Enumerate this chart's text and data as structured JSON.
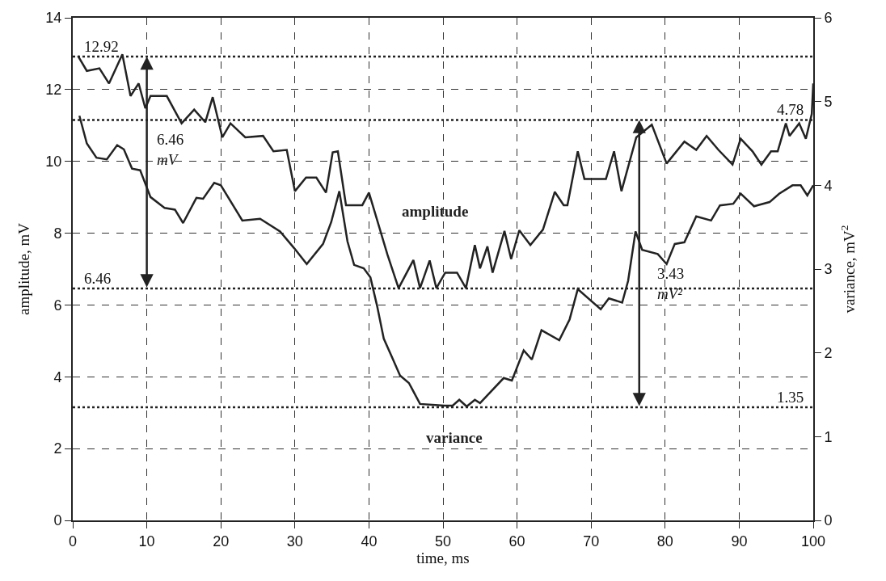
{
  "chart_data": {
    "type": "line",
    "xlabel": "time, ms",
    "ylabel": "amplitude, mV",
    "y2label": "variance, mV$^{2}$",
    "xlim": [
      0,
      100
    ],
    "xticks": [
      0,
      10,
      20,
      30,
      40,
      50,
      60,
      70,
      80,
      90,
      100
    ],
    "ylim": [
      0,
      14
    ],
    "yticks": [
      0,
      2,
      4,
      6,
      8,
      10,
      12,
      14
    ],
    "y2lim": [
      0,
      6
    ],
    "y2ticks": [
      0,
      1,
      2,
      3,
      4,
      5,
      6
    ],
    "grid": true,
    "legend": false,
    "line_style": "solid",
    "series": [
      {
        "name": "amplitude",
        "color": "#222222",
        "x": [
          0.7,
          1.9,
          3.6,
          4.9,
          6.7,
          7.8,
          8.9,
          9.8,
          10.5,
          12.7,
          14.7,
          16.4,
          17.9,
          18.9,
          20.2,
          21.3,
          23.3,
          25.7,
          27.1,
          28.9,
          30.0,
          31.5,
          32.9,
          34.2,
          35.1,
          35.8,
          36.9,
          39.1,
          40.0,
          42.5,
          44.0,
          46.0,
          46.9,
          48.2,
          49.1,
          50.3,
          51.9,
          53.1,
          54.3,
          55.0,
          56.0,
          56.7,
          58.3,
          59.2,
          60.3,
          61.8,
          63.5,
          65.1,
          66.3,
          66.8,
          68.2,
          69.1,
          72.0,
          73.1,
          74.1,
          76.1,
          78.2,
          80.2,
          82.6,
          84.2,
          85.6,
          87.2,
          89.1,
          90.2,
          91.8,
          93.0,
          94.3,
          95.2,
          96.3,
          96.8,
          98.1,
          99.0,
          99.8,
          100
        ],
        "values": [
          12.94,
          12.52,
          12.59,
          12.17,
          12.98,
          11.82,
          12.17,
          11.48,
          11.82,
          11.82,
          11.06,
          11.44,
          11.09,
          11.79,
          10.67,
          11.06,
          10.67,
          10.71,
          10.28,
          10.32,
          9.17,
          9.55,
          9.55,
          9.13,
          10.25,
          10.28,
          8.78,
          8.78,
          9.13,
          7.4,
          6.47,
          7.25,
          6.47,
          7.24,
          6.47,
          6.9,
          6.9,
          6.47,
          7.67,
          7.02,
          7.63,
          6.9,
          8.06,
          7.28,
          8.08,
          7.67,
          8.1,
          9.15,
          8.78,
          8.78,
          10.28,
          9.51,
          9.51,
          10.28,
          9.17,
          10.67,
          11.02,
          9.94,
          10.55,
          10.32,
          10.71,
          10.32,
          9.91,
          10.63,
          10.28,
          9.91,
          10.28,
          10.28,
          11.06,
          10.71,
          11.06,
          10.63,
          11.32,
          12.17
        ]
      },
      {
        "name": "variance",
        "color": "#222222",
        "axis": "y2",
        "x": [
          0.9,
          1.9,
          3.2,
          4.6,
          6.0,
          6.9,
          8.0,
          9.1,
          10.5,
          12.4,
          13.8,
          14.9,
          16.7,
          17.6,
          19.1,
          20.0,
          22.9,
          25.3,
          28.0,
          29.9,
          31.6,
          33.8,
          34.9,
          36.0,
          37.1,
          38.0,
          39.3,
          40.2,
          41.1,
          42.0,
          43.1,
          44.2,
          45.4,
          46.9,
          50.2,
          51.3,
          52.2,
          53.2,
          54.3,
          55.0,
          58.2,
          59.3,
          60.9,
          62.0,
          63.3,
          65.7,
          67.1,
          68.2,
          71.3,
          72.4,
          74.2,
          75.0,
          76.0,
          76.9,
          79.0,
          80.2,
          81.3,
          82.6,
          84.2,
          86.2,
          87.4,
          89.2,
          90.2,
          92.0,
          94.1,
          95.4,
          97.2,
          98.3,
          99.2,
          100
        ],
        "values": [
          4.83,
          4.5,
          4.33,
          4.31,
          4.48,
          4.43,
          4.2,
          4.18,
          3.86,
          3.73,
          3.71,
          3.55,
          3.85,
          3.84,
          4.03,
          4.0,
          3.58,
          3.6,
          3.45,
          3.25,
          3.06,
          3.3,
          3.56,
          3.93,
          3.33,
          3.05,
          3.01,
          2.9,
          2.56,
          2.17,
          1.95,
          1.73,
          1.64,
          1.39,
          1.37,
          1.37,
          1.44,
          1.36,
          1.44,
          1.4,
          1.7,
          1.67,
          2.03,
          1.92,
          2.27,
          2.15,
          2.4,
          2.76,
          2.52,
          2.65,
          2.6,
          2.86,
          3.45,
          3.23,
          3.18,
          3.06,
          3.3,
          3.32,
          3.63,
          3.58,
          3.76,
          3.78,
          3.9,
          3.75,
          3.8,
          3.9,
          4.0,
          4.0,
          3.88,
          4.0
        ]
      }
    ],
    "ref_lines": [
      {
        "axis": "y",
        "value": 12.92,
        "label": "12.92",
        "color": "#222222",
        "line_style": "dotted"
      },
      {
        "axis": "y",
        "value": 6.46,
        "label": "6.46",
        "color": "#222222",
        "line_style": "dotted"
      },
      {
        "axis": "y2",
        "value": 4.78,
        "label": "4.78",
        "color": "#222222",
        "line_style": "dotted"
      },
      {
        "axis": "y2",
        "value": 1.35,
        "label": "1.35",
        "color": "#222222",
        "line_style": "dotted"
      }
    ],
    "annotations": [
      "6.46 mV",
      "3.43 mV²"
    ]
  }
}
